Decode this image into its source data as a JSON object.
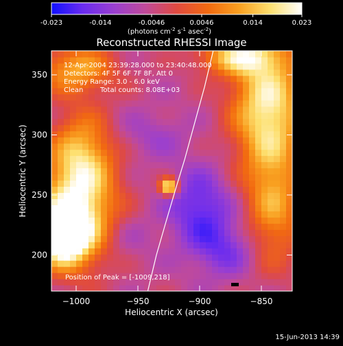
{
  "colorbar": {
    "ticks": [
      "-0.023",
      "-0.014",
      "-0.0046",
      "0.0046",
      "0.014",
      "0.023"
    ],
    "tick_values": [
      -0.023,
      -0.014,
      -0.0046,
      0.0046,
      0.014,
      0.023
    ],
    "range": [
      -0.023,
      0.023
    ],
    "unit_main": "(photons cm",
    "unit_exp1": "-2",
    "unit_mid": " s",
    "unit_exp2": "-1",
    "unit_tail": " asec",
    "unit_exp3": "-2",
    "unit_close": ")",
    "colors": [
      "#1010ff",
      "#6a2cf0",
      "#9a3fd0",
      "#c04a9a",
      "#e04a40",
      "#f26a10",
      "#f9a020",
      "#fde070",
      "#ffffff"
    ]
  },
  "chart_data": {
    "type": "heatmap",
    "title": "Reconstructed RHESSI Image",
    "xlabel": "Heliocentric X (arcsec)",
    "ylabel": "Heliocentric Y (arcsec)",
    "xlim": [
      -1020,
      -825
    ],
    "ylim": [
      170,
      370
    ],
    "xticks": [
      -1000,
      -950,
      -900,
      -850
    ],
    "xtick_labels": [
      "−1000",
      "−950",
      "−900",
      "−850"
    ],
    "yticks": [
      200,
      250,
      300,
      350
    ],
    "ytick_labels": [
      "200",
      "250",
      "300",
      "350"
    ],
    "annotations": [
      "12-Apr-2004 23:39:28.000 to 23:40:48.000",
      "Detectors: 4F 5F 6F 7F 8F, Att 0",
      "Energy Range: 3.0 - 6.0 keV",
      "Clean",
      "Total counts: 8.08E+03"
    ],
    "peak_label": "Position of Peak = [-1009,218]",
    "peak_position": [
      -1009,
      218
    ],
    "background_level": -0.005,
    "features": [
      {
        "x": -1000,
        "y": 235,
        "level": 0.02,
        "sx": 22,
        "sy": 30
      },
      {
        "x": -1010,
        "y": 215,
        "level": 0.022,
        "sx": 14,
        "sy": 16
      },
      {
        "x": -995,
        "y": 285,
        "level": 0.012,
        "sx": 18,
        "sy": 25
      },
      {
        "x": -1000,
        "y": 355,
        "level": 0.012,
        "sx": 22,
        "sy": 14
      },
      {
        "x": -845,
        "y": 325,
        "level": 0.02,
        "sx": 20,
        "sy": 38
      },
      {
        "x": -840,
        "y": 240,
        "level": 0.01,
        "sx": 16,
        "sy": 35
      },
      {
        "x": -870,
        "y": 365,
        "level": 0.014,
        "sx": 22,
        "sy": 10
      },
      {
        "x": -925,
        "y": 257,
        "level": 0.023,
        "sx": 5,
        "sy": 5
      },
      {
        "x": -900,
        "y": 240,
        "level": -0.018,
        "sx": 18,
        "sy": 22
      },
      {
        "x": -880,
        "y": 205,
        "level": -0.015,
        "sx": 18,
        "sy": 16
      },
      {
        "x": -940,
        "y": 300,
        "level": -0.01,
        "sx": 22,
        "sy": 14
      },
      {
        "x": -960,
        "y": 215,
        "level": -0.009,
        "sx": 16,
        "sy": 14
      }
    ],
    "limb_curve": {
      "x": [
        -942,
        -935,
        -928,
        -920,
        -912,
        -904,
        -896,
        -889
      ],
      "y": [
        170,
        200,
        225,
        253,
        280,
        310,
        340,
        370
      ]
    },
    "grid": false
  },
  "footer": {
    "timestamp": "15-Jun-2013 14:39"
  }
}
